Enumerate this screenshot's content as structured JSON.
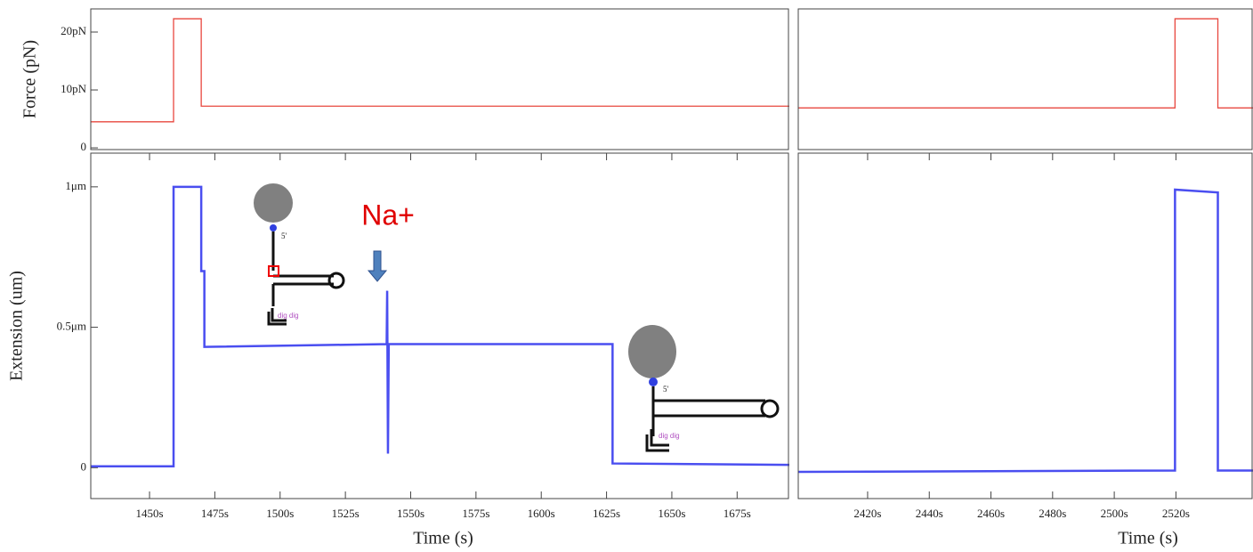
{
  "chart_data": [
    {
      "type": "line",
      "ylabel": "Force (pN)",
      "xlim": [
        1427.5,
        1695
      ],
      "ylim": [
        -0.3,
        24
      ],
      "yticks": [
        0,
        {
          "value": 10,
          "label": "10pN"
        },
        {
          "value": 20,
          "label": "20pN"
        }
      ],
      "x": [
        1427.5,
        1459.2,
        1459.2,
        1469.8,
        1469.8,
        1695
      ],
      "series": [
        {
          "color": "#e8473f",
          "values": [
            4.5,
            4.5,
            22.3,
            22.3,
            7.2,
            7.2
          ]
        }
      ]
    },
    {
      "type": "line",
      "xlim": [
        2397.5,
        2545
      ],
      "ylim": [
        -0.3,
        24
      ],
      "x": [
        2397.5,
        2519.7,
        2519.7,
        2533.6,
        2533.6,
        2545
      ],
      "series": [
        {
          "color": "#e8473f",
          "values": [
            6.9,
            6.9,
            22.3,
            22.3,
            6.9,
            6.9
          ]
        }
      ]
    },
    {
      "type": "line",
      "ylabel": "Extension (um)",
      "xlabel": "Time (s)",
      "xlim": [
        1427.5,
        1695
      ],
      "ylim": [
        -0.11,
        1.12
      ],
      "yticks": [
        0,
        {
          "value": 0.5,
          "label": "0.5μm"
        },
        {
          "value": 1,
          "label": "1μm"
        }
      ],
      "xticks": [
        {
          "value": 1450,
          "label": "1450s"
        },
        {
          "value": 1475,
          "label": "1475s"
        },
        {
          "value": 1500,
          "label": "1500s"
        },
        {
          "value": 1525,
          "label": "1525s"
        },
        {
          "value": 1550,
          "label": "1550s"
        },
        {
          "value": 1575,
          "label": "1575s"
        },
        {
          "value": 1600,
          "label": "1600s"
        },
        {
          "value": 1625,
          "label": "1625s"
        },
        {
          "value": 1650,
          "label": "1650s"
        },
        {
          "value": 1675,
          "label": "1675s"
        }
      ],
      "x": [
        1427.5,
        1459.2,
        1459.2,
        1469.8,
        1469.8,
        1471,
        1471,
        1540.8,
        1541,
        1541.3,
        1541.6,
        1627.3,
        1627.3,
        1695
      ],
      "series": [
        {
          "color": "#4a4ef0",
          "values": [
            0.005,
            0.005,
            1.0,
            1.0,
            0.7,
            0.7,
            0.43,
            0.44,
            0.63,
            0.05,
            0.44,
            0.44,
            0.015,
            0.01
          ]
        }
      ],
      "annotations": [
        "Na+",
        "5'",
        "dig dig",
        "5'",
        "dig dig"
      ]
    },
    {
      "type": "line",
      "xlabel": "Time (s)",
      "xlim": [
        2397.5,
        2545
      ],
      "ylim": [
        -0.11,
        1.12
      ],
      "xticks": [
        {
          "value": 2420,
          "label": "2420s"
        },
        {
          "value": 2440,
          "label": "2440s"
        },
        {
          "value": 2460,
          "label": "2460s"
        },
        {
          "value": 2480,
          "label": "2480s"
        },
        {
          "value": 2500,
          "label": "2500s"
        },
        {
          "value": 2520,
          "label": "2520s"
        }
      ],
      "x": [
        2397.5,
        2519.7,
        2519.7,
        2533.6,
        2533.6,
        2545
      ],
      "series": [
        {
          "color": "#4a4ef0",
          "values": [
            -0.015,
            -0.01,
            0.99,
            0.98,
            -0.01,
            -0.01
          ]
        }
      ]
    }
  ]
}
